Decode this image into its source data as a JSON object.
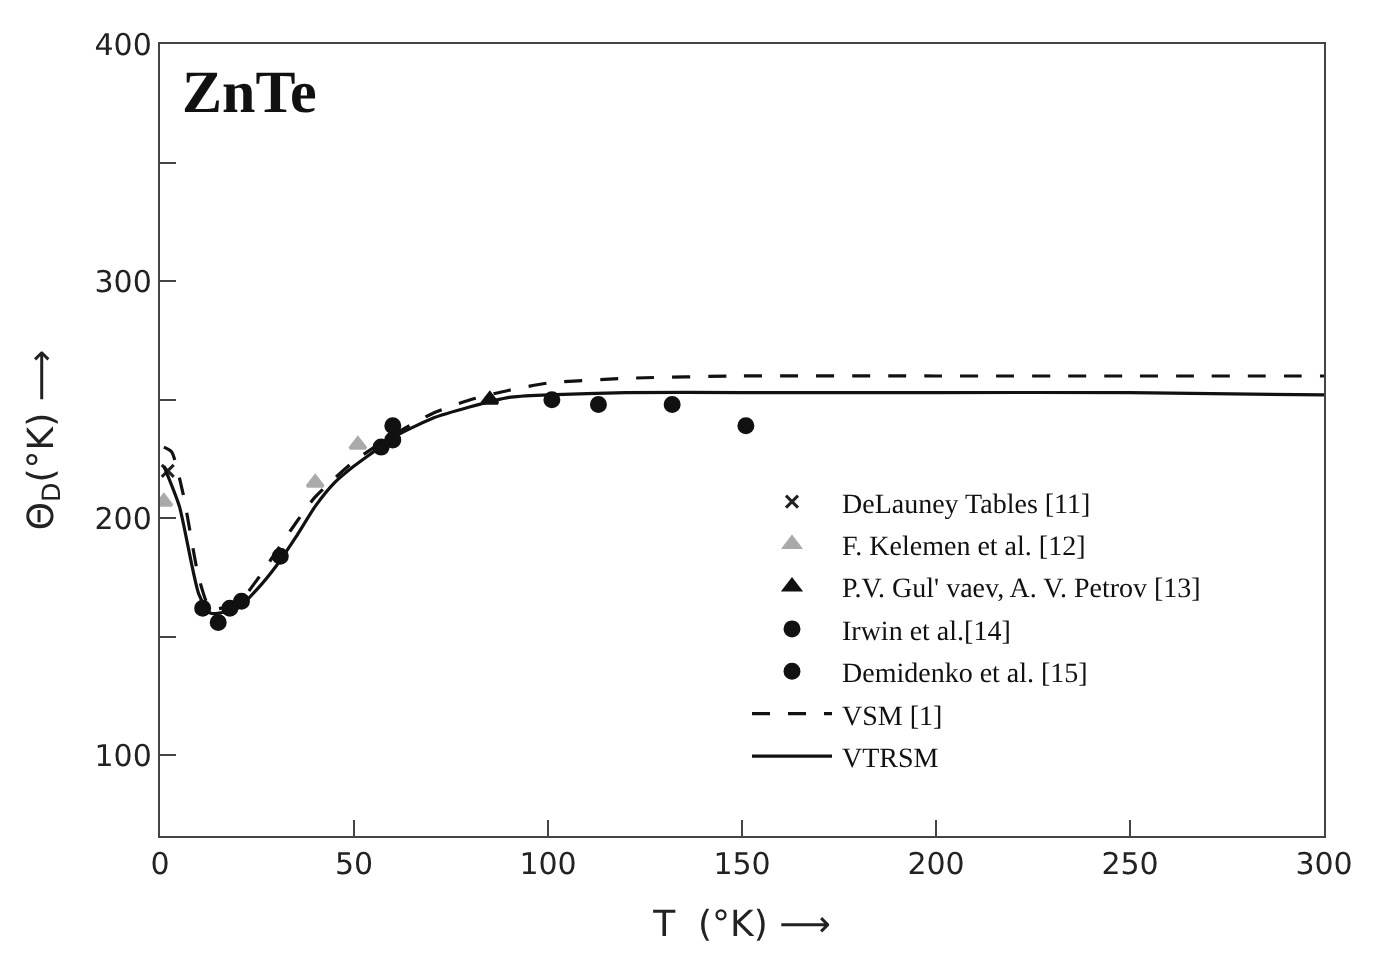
{
  "chart_data": {
    "type": "scatter",
    "title": "ZnTe",
    "xlabel": "T  (°K) ⟶",
    "ylabel": "Θ$_{D}$(°K) ⟶",
    "xlim": [
      0,
      300
    ],
    "xticks": [
      0,
      50,
      100,
      150,
      200,
      250,
      300
    ],
    "ylim": [
      66,
      400
    ],
    "yticks": [
      100,
      {
        "value": 150,
        "label": null
      },
      200,
      {
        "value": 250,
        "label": null
      },
      300,
      {
        "value": 350,
        "label": null
      },
      400
    ],
    "legend": "bottom right",
    "series": [
      {
        "name": "DeLauney Tables [11]",
        "marker": "cross",
        "color": "#222222",
        "x": [
          2
        ],
        "values": [
          220
        ]
      },
      {
        "name": "F. Kelemen et al. [12]",
        "marker": "triangle",
        "color": "#aaaaaa",
        "x": [
          1,
          40,
          51
        ],
        "values": [
          207,
          215,
          231
        ]
      },
      {
        "name": "P.V. Gul' vaev, A. V. Petrov [13]",
        "marker": "triangle",
        "color": "#111111",
        "x": [
          85
        ],
        "values": [
          250
        ]
      },
      {
        "name": "Irwin et al.[14]",
        "marker": "circle",
        "color": "#111111",
        "x": [
          11,
          18,
          21,
          60
        ],
        "values": [
          162,
          162,
          165,
          233
        ]
      },
      {
        "name": "Demidenko et al. [15]",
        "marker": "circle",
        "color": "#111111",
        "x": [
          15,
          31,
          57,
          60,
          101,
          113,
          132,
          151
        ],
        "values": [
          156,
          184,
          230,
          239,
          250,
          248,
          248,
          239
        ]
      },
      {
        "name": "VSM [1]",
        "type": "line",
        "line_style": "dashed",
        "color": "#111111",
        "x": [
          1,
          3,
          6,
          10,
          13,
          20,
          25,
          30,
          35,
          40,
          50,
          60,
          70,
          80,
          90,
          100,
          120,
          150,
          200,
          250,
          300
        ],
        "values": [
          230,
          228,
          210,
          175,
          162,
          164,
          174,
          186,
          198,
          209,
          224,
          235,
          244,
          250,
          254,
          257,
          259,
          260,
          260,
          260,
          260
        ]
      },
      {
        "name": "VTRSM",
        "type": "line",
        "line_style": "solid",
        "color": "#111111",
        "x": [
          1,
          5,
          10,
          13,
          20,
          25,
          30,
          35,
          40,
          45,
          50,
          55,
          60,
          70,
          80,
          90,
          100,
          120,
          150,
          200,
          250,
          300
        ],
        "values": [
          222,
          205,
          168,
          160,
          162,
          170,
          180,
          192,
          205,
          215,
          222,
          228,
          234,
          242,
          247,
          251,
          252,
          253,
          253,
          253,
          253,
          252
        ]
      }
    ]
  }
}
